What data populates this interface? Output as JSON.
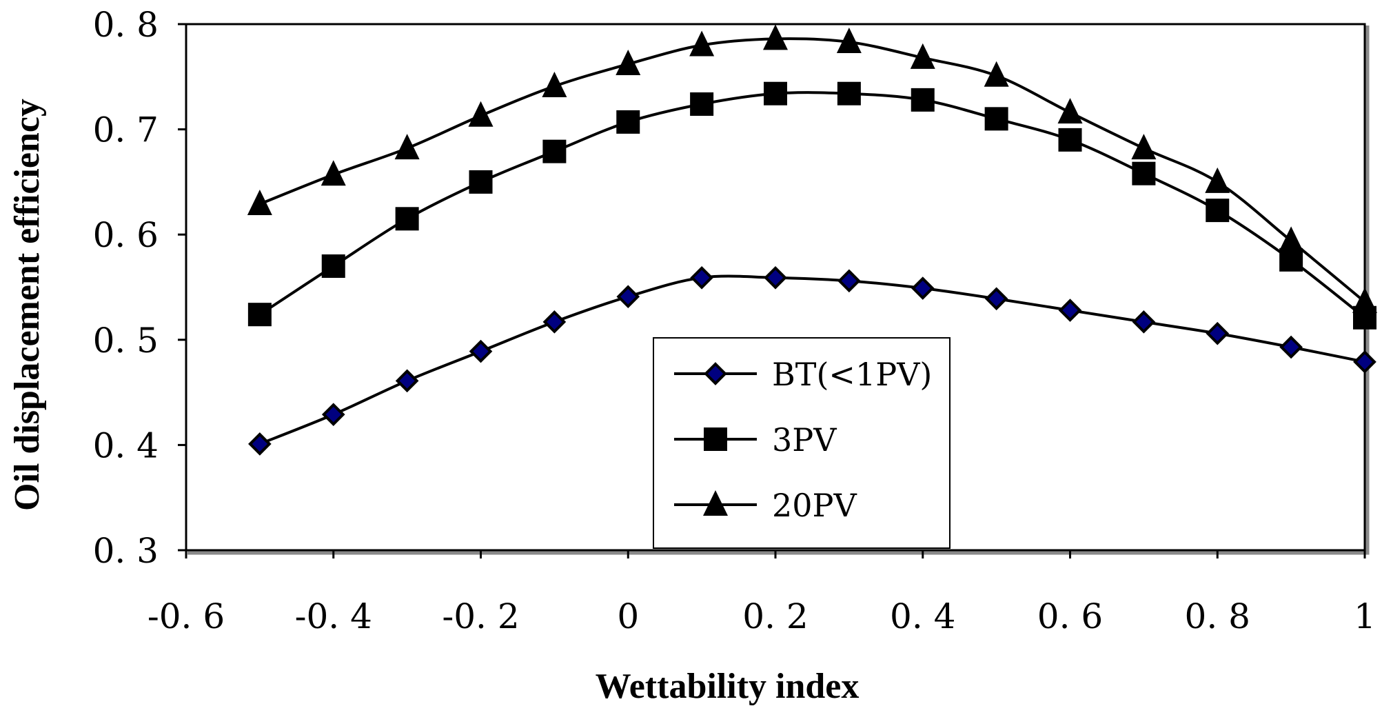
{
  "chart_data": {
    "type": "line",
    "title": "",
    "xlabel": "Wettability index",
    "ylabel": "Oil displacement efficiency",
    "xlim": [
      -0.6,
      1
    ],
    "ylim": [
      0.3,
      0.8
    ],
    "grid": false,
    "legend_position": "center",
    "x_ticks": [
      -0.6,
      -0.4,
      -0.2,
      0,
      0.2,
      0.4,
      0.6,
      0.8,
      1
    ],
    "x_tick_labels": [
      "-0. 6",
      "-0. 4",
      "-0. 2",
      "0",
      "0. 2",
      "0. 4",
      "0. 6",
      "0. 8",
      "1"
    ],
    "y_ticks": [
      0.3,
      0.4,
      0.5,
      0.6,
      0.7,
      0.8
    ],
    "y_tick_labels": [
      "0. 3",
      "0. 4",
      "0. 5",
      "0. 6",
      "0. 7",
      "0. 8"
    ],
    "x": [
      -0.5,
      -0.4,
      -0.3,
      -0.2,
      -0.1,
      0,
      0.1,
      0.2,
      0.3,
      0.4,
      0.5,
      0.6,
      0.7,
      0.8,
      0.9,
      1
    ],
    "series": [
      {
        "name": "BT (<1PV)",
        "legend_label": "BT(<1PV)",
        "marker": "diamond",
        "marker_fill": "#000080",
        "values": [
          0.401,
          0.429,
          0.461,
          0.489,
          0.517,
          0.541,
          0.559,
          0.559,
          0.556,
          0.549,
          0.539,
          0.528,
          0.517,
          0.506,
          0.493,
          0.479
        ]
      },
      {
        "name": "3PV",
        "legend_label": "3PV",
        "marker": "square",
        "marker_fill": "#000000",
        "values": [
          0.524,
          0.57,
          0.615,
          0.65,
          0.679,
          0.707,
          0.724,
          0.734,
          0.734,
          0.728,
          0.71,
          0.69,
          0.658,
          0.623,
          0.576,
          0.521
        ]
      },
      {
        "name": "20PV",
        "legend_label": "20PV",
        "marker": "triangle",
        "marker_fill": "#000000",
        "values": [
          0.629,
          0.657,
          0.682,
          0.713,
          0.741,
          0.762,
          0.78,
          0.786,
          0.783,
          0.768,
          0.751,
          0.716,
          0.682,
          0.65,
          0.594,
          0.536
        ]
      }
    ]
  }
}
